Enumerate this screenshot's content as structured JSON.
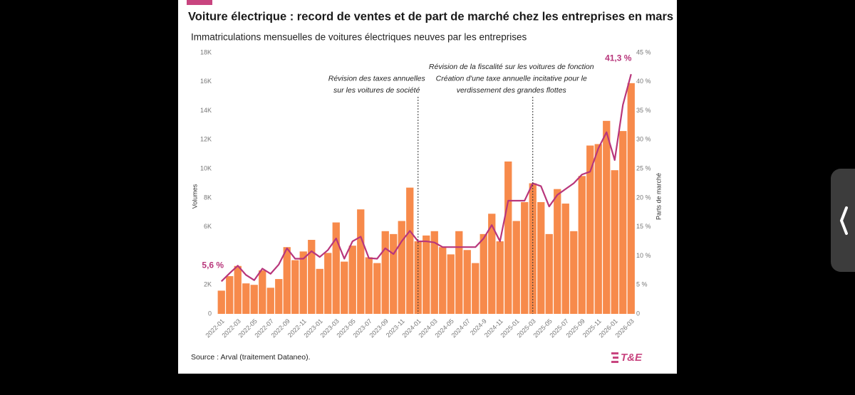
{
  "chart_data": {
    "type": "bar",
    "title": "Voiture électrique : record de ventes et de part de marché chez les entreprises en mars",
    "subtitle": "Immatriculations mensuelles de voitures électriques neuves par les entreprises",
    "ylabel": "Volumes",
    "y2label": "Parts de marché",
    "source": "Source : Arval (traitement Dataneo).",
    "logo": "T&E",
    "categories": [
      "2022-01",
      null,
      "2022-03",
      null,
      "2022-05",
      null,
      "2022-07",
      null,
      "2022-09",
      null,
      "2022-11",
      null,
      "2023-01",
      null,
      "2023-03",
      null,
      "2023-05",
      null,
      "2023-07",
      null,
      "2023-09",
      null,
      "2023-11",
      null,
      "2024-01",
      null,
      "2024-03",
      null,
      "2024-05",
      null,
      "2024-07",
      null,
      "2024-9",
      null,
      "2024-11",
      null,
      "2025-01",
      null,
      "2025-03",
      null,
      "2025-05",
      null,
      "2025-07",
      null,
      "2025-09",
      null,
      "2025-11",
      null,
      "2026-01",
      null,
      "2026-03"
    ],
    "series": [
      {
        "type": "bar",
        "color": "#f78a4b",
        "axis": "y",
        "values": [
          1600,
          2600,
          3300,
          2100,
          2000,
          3000,
          1800,
          2400,
          4600,
          3700,
          4300,
          5100,
          3100,
          4200,
          6300,
          3600,
          4700,
          7200,
          3900,
          3500,
          5700,
          5500,
          6400,
          8700,
          5000,
          5400,
          5700,
          4600,
          4100,
          5700,
          4400,
          3500,
          5500,
          6900,
          5000,
          10500,
          6400,
          7700,
          9000,
          7700,
          5500,
          8600,
          7600,
          5700,
          9500,
          11600,
          11700,
          13300,
          9900,
          12600,
          15900
        ]
      },
      {
        "type": "line",
        "color": "#b8367b",
        "axis": "y2",
        "values": [
          5.6,
          7.0,
          8.3,
          6.7,
          5.8,
          7.8,
          6.9,
          8.5,
          11.3,
          9.5,
          9.5,
          10.8,
          9.8,
          11.0,
          13.0,
          9.5,
          12.5,
          13.3,
          9.6,
          9.5,
          11.3,
          10.3,
          12.5,
          14.3,
          12.5,
          12.5,
          12.3,
          11.5,
          11.5,
          11.5,
          11.5,
          11.5,
          13.0,
          15.3,
          12.5,
          19.5,
          19.5,
          19.5,
          22.5,
          22.0,
          18.5,
          20.5,
          21.5,
          22.5,
          24.0,
          24.5,
          28.5,
          31.3,
          26.5,
          36.0,
          41.3
        ],
        "value_labels": [
          "5,6 %",
          null,
          null,
          null,
          null,
          null,
          null,
          null,
          null,
          null,
          null,
          null,
          null,
          null,
          null,
          null,
          null,
          null,
          null,
          null,
          null,
          null,
          null,
          null,
          null,
          null,
          null,
          null,
          null,
          null,
          null,
          null,
          null,
          null,
          null,
          null,
          null,
          null,
          null,
          null,
          null,
          null,
          null,
          null,
          null,
          null,
          null,
          null,
          null,
          null,
          "41,3 %"
        ]
      }
    ],
    "ylim": [
      0,
      18000
    ],
    "yticks": [
      {
        "value": 0,
        "label": "0"
      },
      {
        "value": 2000,
        "label": "2K"
      },
      {
        "value": 6000,
        "label": "6K"
      },
      {
        "value": 8000,
        "label": "8K"
      },
      {
        "value": 10000,
        "label": "10K"
      },
      {
        "value": 12000,
        "label": "12K"
      },
      {
        "value": 14000,
        "label": "14K"
      },
      {
        "value": 16000,
        "label": "16K"
      },
      {
        "value": 18000,
        "label": "18K"
      }
    ],
    "y2lim": [
      0,
      45
    ],
    "y2ticks": [
      0,
      {
        "value": 5,
        "label": "5 %"
      },
      {
        "value": 10,
        "label": "10 %"
      },
      {
        "value": 15,
        "label": "15 %"
      },
      {
        "value": 20,
        "label": "20 %"
      },
      {
        "value": 25,
        "label": "25 %"
      },
      {
        "value": 30,
        "label": "30 %"
      },
      {
        "value": 35,
        "label": "35 %"
      },
      {
        "value": 40,
        "label": "40 %"
      },
      {
        "value": 45,
        "label": "45 %"
      }
    ],
    "markers": [
      {
        "x": "2024-01",
        "text": [
          "Révision des taxes annuelles",
          "sur les voitures de société"
        ]
      },
      {
        "x": "2025-03",
        "text": [
          "Révision de la fiscalité sur les voitures de fonction",
          "Création d'une taxe annuelle incitative pour le",
          "verdissement des grandes flottes"
        ]
      }
    ]
  }
}
